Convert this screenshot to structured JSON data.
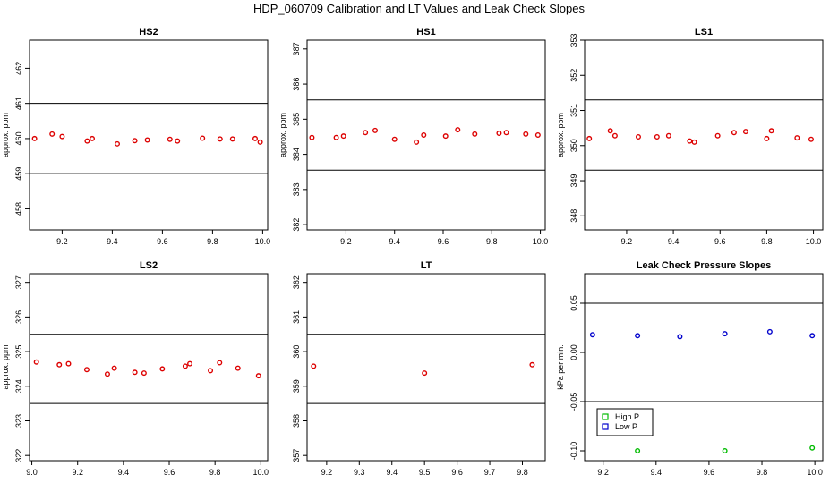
{
  "figure": {
    "title": "HDP_060709  Calibration and LT Values and Leak Check Slopes"
  },
  "chart_data": [
    {
      "type": "scatter",
      "title": "HS2",
      "ylabel": "approx. ppm",
      "xlim": [
        9.07,
        10.02
      ],
      "ylim": [
        457.4,
        462.8
      ],
      "xticks": [
        9.2,
        9.4,
        9.6,
        9.8,
        10.0
      ],
      "xtick_labels": [
        "9.2",
        "9.4",
        "9.6",
        "9.8",
        "10.0"
      ],
      "yticks": [
        458,
        459,
        460,
        461,
        462
      ],
      "ytick_labels": [
        "458",
        "459",
        "460",
        "461",
        "462"
      ],
      "hlines": [
        459,
        461
      ],
      "series": [
        {
          "color": "#dd0000",
          "x": [
            9.09,
            9.16,
            9.2,
            9.3,
            9.32,
            9.42,
            9.49,
            9.54,
            9.63,
            9.66,
            9.76,
            9.83,
            9.88,
            9.97,
            9.99
          ],
          "y": [
            460.0,
            460.13,
            460.06,
            459.93,
            460.0,
            459.85,
            459.94,
            459.96,
            459.98,
            459.93,
            460.01,
            459.99,
            459.99,
            460.0,
            459.9
          ]
        }
      ]
    },
    {
      "type": "scatter",
      "title": "HS1",
      "ylabel": "approx. ppm",
      "xlim": [
        9.04,
        10.02
      ],
      "ylim": [
        381.85,
        387.25
      ],
      "xticks": [
        9.2,
        9.4,
        9.6,
        9.8,
        10.0
      ],
      "xtick_labels": [
        "9.2",
        "9.4",
        "9.6",
        "9.8",
        "10.0"
      ],
      "yticks": [
        382,
        383,
        384,
        385,
        386,
        387
      ],
      "ytick_labels": [
        "382",
        "383",
        "384",
        "385",
        "386",
        "387"
      ],
      "hlines": [
        383.55,
        385.55
      ],
      "series": [
        {
          "color": "#dd0000",
          "x": [
            9.06,
            9.16,
            9.19,
            9.28,
            9.32,
            9.4,
            9.49,
            9.52,
            9.61,
            9.66,
            9.73,
            9.83,
            9.86,
            9.94,
            9.99
          ],
          "y": [
            384.48,
            384.48,
            384.52,
            384.62,
            384.68,
            384.43,
            384.35,
            384.55,
            384.52,
            384.7,
            384.58,
            384.6,
            384.62,
            384.58,
            384.55
          ]
        }
      ]
    },
    {
      "type": "scatter",
      "title": "LS1",
      "ylabel": "approx. ppm",
      "xlim": [
        9.02,
        10.04
      ],
      "ylim": [
        347.6,
        353.0
      ],
      "xticks": [
        9.2,
        9.4,
        9.6,
        9.8,
        10.0
      ],
      "xtick_labels": [
        "9.2",
        "9.4",
        "9.6",
        "9.8",
        "10.0"
      ],
      "yticks": [
        348,
        349,
        350,
        351,
        352,
        353
      ],
      "ytick_labels": [
        "348",
        "349",
        "350",
        "351",
        "352",
        "353"
      ],
      "hlines": [
        349.3,
        351.3
      ],
      "series": [
        {
          "color": "#dd0000",
          "x": [
            9.04,
            9.13,
            9.15,
            9.25,
            9.33,
            9.38,
            9.47,
            9.49,
            9.59,
            9.66,
            9.71,
            9.8,
            9.82,
            9.93,
            9.99
          ],
          "y": [
            350.2,
            350.42,
            350.28,
            350.25,
            350.25,
            350.28,
            350.13,
            350.1,
            350.28,
            350.37,
            350.4,
            350.2,
            350.42,
            350.22,
            350.18
          ]
        }
      ]
    },
    {
      "type": "scatter",
      "title": "LS2",
      "ylabel": "approx. ppm",
      "xlim": [
        8.99,
        10.03
      ],
      "ylim": [
        321.85,
        327.25
      ],
      "xticks": [
        9.0,
        9.2,
        9.4,
        9.6,
        9.8,
        10.0
      ],
      "xtick_labels": [
        "9.0",
        "9.2",
        "9.4",
        "9.6",
        "9.8",
        "10.0"
      ],
      "yticks": [
        322,
        323,
        324,
        325,
        326,
        327
      ],
      "ytick_labels": [
        "322",
        "323",
        "324",
        "325",
        "326",
        "327"
      ],
      "hlines": [
        323.5,
        325.5
      ],
      "series": [
        {
          "color": "#dd0000",
          "x": [
            9.02,
            9.12,
            9.16,
            9.24,
            9.33,
            9.36,
            9.45,
            9.49,
            9.57,
            9.67,
            9.69,
            9.78,
            9.82,
            9.9,
            9.99
          ],
          "y": [
            324.7,
            324.62,
            324.65,
            324.48,
            324.35,
            324.52,
            324.4,
            324.38,
            324.5,
            324.58,
            324.65,
            324.45,
            324.68,
            324.52,
            324.3
          ]
        }
      ]
    },
    {
      "type": "scatter",
      "title": "LT",
      "ylabel": "",
      "xlim": [
        9.14,
        9.87
      ],
      "ylim": [
        356.85,
        362.25
      ],
      "xticks": [
        9.2,
        9.3,
        9.4,
        9.5,
        9.6,
        9.7,
        9.8
      ],
      "xtick_labels": [
        "9.2",
        "9.3",
        "9.4",
        "9.5",
        "9.6",
        "9.7",
        "9.8"
      ],
      "yticks": [
        357,
        358,
        359,
        360,
        361,
        362
      ],
      "ytick_labels": [
        "357",
        "358",
        "359",
        "360",
        "361",
        "362"
      ],
      "hlines": [
        358.5,
        360.5
      ],
      "series": [
        {
          "color": "#dd0000",
          "x": [
            9.16,
            9.5,
            9.83
          ],
          "y": [
            359.58,
            359.38,
            359.62
          ]
        }
      ]
    },
    {
      "type": "scatter",
      "title": "Leak Check Pressure Slopes",
      "ylabel": "kPa per min.",
      "xlim": [
        9.13,
        10.03
      ],
      "ylim": [
        -0.11,
        0.08
      ],
      "xticks": [
        9.2,
        9.4,
        9.6,
        9.8,
        10.0
      ],
      "xtick_labels": [
        "9.2",
        "9.4",
        "9.6",
        "9.8",
        "10.0"
      ],
      "yticks": [
        -0.1,
        -0.05,
        0.0,
        0.05
      ],
      "ytick_labels": [
        "-0.10",
        "-0.05",
        "0.00",
        "0.05"
      ],
      "hlines": [
        -0.05,
        0.05
      ],
      "legend": {
        "placement": "bottom-left",
        "entries": [
          {
            "label": "High P",
            "color": "#00bb00"
          },
          {
            "label": "Low P",
            "color": "#0000cc"
          }
        ]
      },
      "series": [
        {
          "name": "High P",
          "color": "#00bb00",
          "x": [
            9.33,
            9.66,
            9.99
          ],
          "y": [
            -0.1,
            -0.1,
            -0.097
          ]
        },
        {
          "name": "Low P",
          "color": "#0000cc",
          "x": [
            9.16,
            9.33,
            9.49,
            9.66,
            9.83,
            9.99
          ],
          "y": [
            0.018,
            0.017,
            0.016,
            0.019,
            0.021,
            0.017
          ]
        }
      ]
    }
  ]
}
